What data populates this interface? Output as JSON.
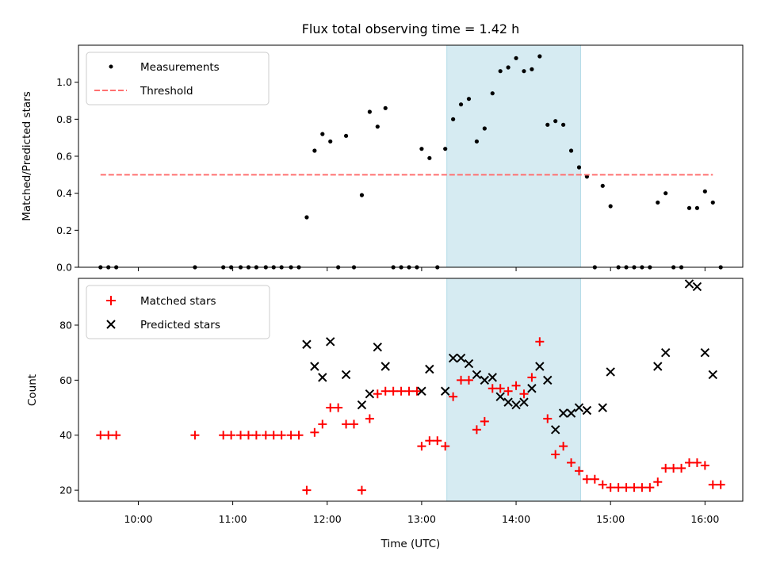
{
  "chart_data": {
    "title": "Flux total observing time = 1.42 h",
    "xlabel": "Time (UTC)",
    "x_ticks": [
      "10:00",
      "11:00",
      "12:00",
      "13:00",
      "14:00",
      "15:00",
      "16:00"
    ],
    "highlight_span": {
      "start": "13:16",
      "end": "14:41",
      "color": "#add8e6"
    },
    "panels": [
      {
        "type": "scatter",
        "ylabel": "Matched/Predicted stars",
        "ylim": [
          0,
          1.2
        ],
        "yticks": [
          "0.0",
          "0.2",
          "0.4",
          "0.6",
          "0.8",
          "1.0"
        ],
        "legend_position": "upper-left",
        "series": [
          {
            "name": "Measurements",
            "marker": "dot",
            "color": "#000000",
            "points": [
              [
                "09:36",
                0
              ],
              [
                "09:41",
                0
              ],
              [
                "09:46",
                0
              ],
              [
                "10:36",
                0
              ],
              [
                "10:54",
                0
              ],
              [
                "10:59",
                0
              ],
              [
                "11:05",
                0
              ],
              [
                "11:10",
                0
              ],
              [
                "11:15",
                0
              ],
              [
                "11:21",
                0
              ],
              [
                "11:26",
                0
              ],
              [
                "11:31",
                0
              ],
              [
                "11:37",
                0
              ],
              [
                "11:42",
                0
              ],
              [
                "11:47",
                0.27
              ],
              [
                "11:52",
                0.63
              ],
              [
                "11:57",
                0.72
              ],
              [
                "12:02",
                0.68
              ],
              [
                "12:07",
                0
              ],
              [
                "12:12",
                0.71
              ],
              [
                "12:17",
                0
              ],
              [
                "12:22",
                0.39
              ],
              [
                "12:27",
                0.84
              ],
              [
                "12:32",
                0.76
              ],
              [
                "12:37",
                0.86
              ],
              [
                "12:42",
                0
              ],
              [
                "12:47",
                0
              ],
              [
                "12:52",
                0
              ],
              [
                "12:57",
                0
              ],
              [
                "13:00",
                0.64
              ],
              [
                "13:05",
                0.59
              ],
              [
                "13:10",
                0
              ],
              [
                "13:15",
                0.64
              ],
              [
                "13:20",
                0.8
              ],
              [
                "13:25",
                0.88
              ],
              [
                "13:30",
                0.91
              ],
              [
                "13:35",
                0.68
              ],
              [
                "13:40",
                0.75
              ],
              [
                "13:45",
                0.94
              ],
              [
                "13:50",
                1.06
              ],
              [
                "13:55",
                1.08
              ],
              [
                "14:00",
                1.13
              ],
              [
                "14:05",
                1.06
              ],
              [
                "14:10",
                1.07
              ],
              [
                "14:15",
                1.14
              ],
              [
                "14:20",
                0.77
              ],
              [
                "14:25",
                0.79
              ],
              [
                "14:30",
                0.77
              ],
              [
                "14:35",
                0.63
              ],
              [
                "14:40",
                0.54
              ],
              [
                "14:45",
                0.49
              ],
              [
                "14:50",
                0
              ],
              [
                "14:55",
                0.44
              ],
              [
                "15:00",
                0.33
              ],
              [
                "15:05",
                0
              ],
              [
                "15:10",
                0
              ],
              [
                "15:15",
                0
              ],
              [
                "15:20",
                0
              ],
              [
                "15:25",
                0
              ],
              [
                "15:30",
                0.35
              ],
              [
                "15:35",
                0.4
              ],
              [
                "15:40",
                0
              ],
              [
                "15:45",
                0
              ],
              [
                "15:50",
                0.32
              ],
              [
                "15:55",
                0.32
              ],
              [
                "16:00",
                0.41
              ],
              [
                "16:05",
                0.35
              ],
              [
                "16:10",
                0
              ]
            ]
          },
          {
            "name": "Threshold",
            "marker": "dashed-line",
            "color": "#ff7070",
            "points": [
              [
                "09:36",
                0.5
              ],
              [
                "16:05",
                0.5
              ]
            ]
          }
        ]
      },
      {
        "type": "scatter",
        "ylabel": "Count",
        "ylim": [
          16,
          97
        ],
        "yticks": [
          "20",
          "40",
          "60",
          "80"
        ],
        "legend_position": "upper-left",
        "series": [
          {
            "name": "Matched stars",
            "marker": "plus",
            "color": "#ff0000",
            "points": [
              [
                "09:36",
                40
              ],
              [
                "09:41",
                40
              ],
              [
                "09:46",
                40
              ],
              [
                "10:36",
                40
              ],
              [
                "10:54",
                40
              ],
              [
                "10:59",
                40
              ],
              [
                "11:05",
                40
              ],
              [
                "11:10",
                40
              ],
              [
                "11:15",
                40
              ],
              [
                "11:21",
                40
              ],
              [
                "11:26",
                40
              ],
              [
                "11:31",
                40
              ],
              [
                "11:37",
                40
              ],
              [
                "11:42",
                40
              ],
              [
                "11:47",
                20
              ],
              [
                "11:52",
                41
              ],
              [
                "11:57",
                44
              ],
              [
                "12:02",
                50
              ],
              [
                "12:07",
                50
              ],
              [
                "12:12",
                44
              ],
              [
                "12:17",
                44
              ],
              [
                "12:22",
                20
              ],
              [
                "12:27",
                46
              ],
              [
                "12:32",
                55
              ],
              [
                "12:37",
                56
              ],
              [
                "12:42",
                56
              ],
              [
                "12:47",
                56
              ],
              [
                "12:52",
                56
              ],
              [
                "12:57",
                56
              ],
              [
                "13:00",
                36
              ],
              [
                "13:05",
                38
              ],
              [
                "13:10",
                38
              ],
              [
                "13:15",
                36
              ],
              [
                "13:20",
                54
              ],
              [
                "13:25",
                60
              ],
              [
                "13:30",
                60
              ],
              [
                "13:35",
                42
              ],
              [
                "13:40",
                45
              ],
              [
                "13:45",
                57
              ],
              [
                "13:50",
                57
              ],
              [
                "13:55",
                56
              ],
              [
                "14:00",
                58
              ],
              [
                "14:05",
                55
              ],
              [
                "14:10",
                61
              ],
              [
                "14:15",
                74
              ],
              [
                "14:20",
                46
              ],
              [
                "14:25",
                33
              ],
              [
                "14:30",
                36
              ],
              [
                "14:35",
                30
              ],
              [
                "14:40",
                27
              ],
              [
                "14:45",
                24
              ],
              [
                "14:50",
                24
              ],
              [
                "14:55",
                22
              ],
              [
                "15:00",
                21
              ],
              [
                "15:05",
                21
              ],
              [
                "15:10",
                21
              ],
              [
                "15:15",
                21
              ],
              [
                "15:20",
                21
              ],
              [
                "15:25",
                21
              ],
              [
                "15:30",
                23
              ],
              [
                "15:35",
                28
              ],
              [
                "15:40",
                28
              ],
              [
                "15:45",
                28
              ],
              [
                "15:50",
                30
              ],
              [
                "15:55",
                30
              ],
              [
                "16:00",
                29
              ],
              [
                "16:05",
                22
              ],
              [
                "16:10",
                22
              ]
            ]
          },
          {
            "name": "Predicted stars",
            "marker": "x",
            "color": "#000000",
            "points": [
              [
                "11:47",
                73
              ],
              [
                "11:52",
                65
              ],
              [
                "11:57",
                61
              ],
              [
                "12:02",
                74
              ],
              [
                "12:12",
                62
              ],
              [
                "12:22",
                51
              ],
              [
                "12:27",
                55
              ],
              [
                "12:32",
                72
              ],
              [
                "12:37",
                65
              ],
              [
                "13:00",
                56
              ],
              [
                "13:05",
                64
              ],
              [
                "13:15",
                56
              ],
              [
                "13:20",
                68
              ],
              [
                "13:25",
                68
              ],
              [
                "13:30",
                66
              ],
              [
                "13:35",
                62
              ],
              [
                "13:40",
                60
              ],
              [
                "13:45",
                61
              ],
              [
                "13:50",
                54
              ],
              [
                "13:55",
                52
              ],
              [
                "14:00",
                51
              ],
              [
                "14:05",
                52
              ],
              [
                "14:10",
                57
              ],
              [
                "14:15",
                65
              ],
              [
                "14:20",
                60
              ],
              [
                "14:25",
                42
              ],
              [
                "14:30",
                48
              ],
              [
                "14:35",
                48
              ],
              [
                "14:40",
                50
              ],
              [
                "14:45",
                49
              ],
              [
                "14:55",
                50
              ],
              [
                "15:00",
                63
              ],
              [
                "15:30",
                65
              ],
              [
                "15:35",
                70
              ],
              [
                "15:50",
                95
              ],
              [
                "15:55",
                94
              ],
              [
                "16:00",
                70
              ],
              [
                "16:05",
                62
              ]
            ]
          }
        ]
      }
    ]
  }
}
